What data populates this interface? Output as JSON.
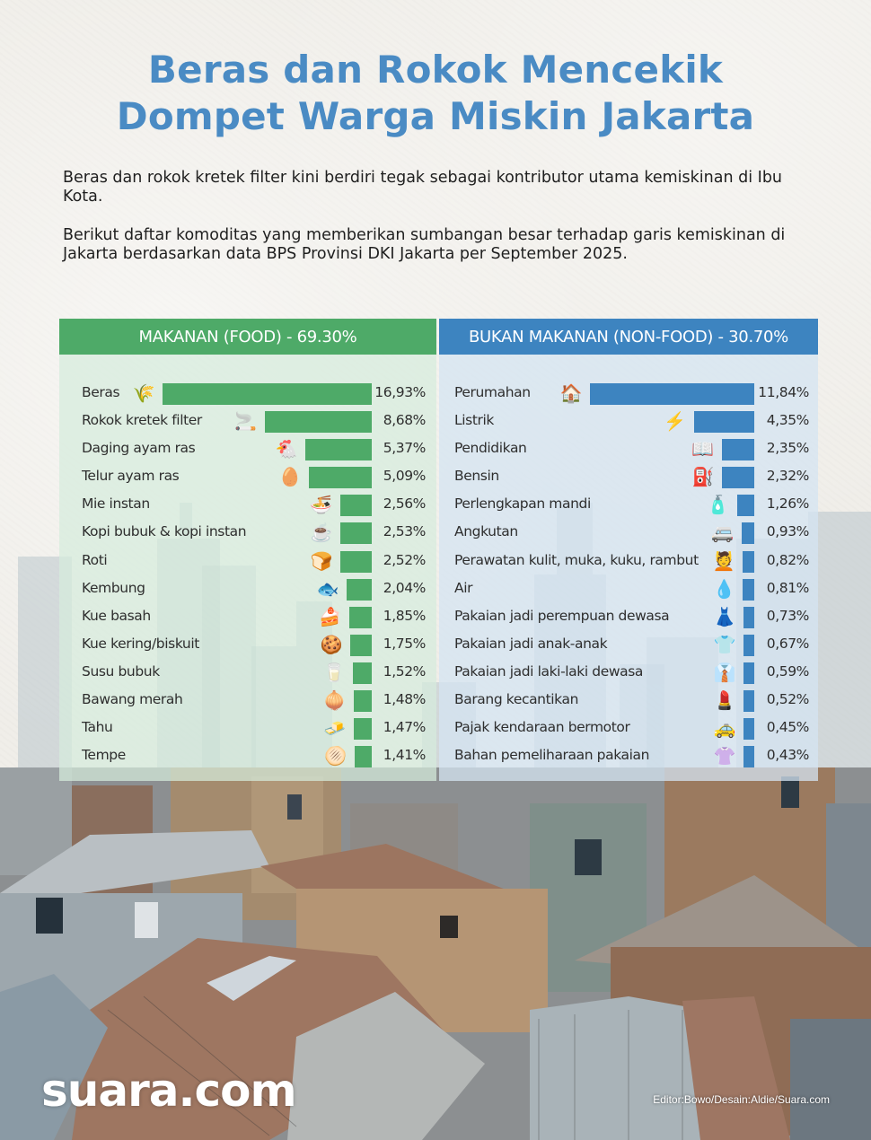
{
  "title": {
    "line1": "Beras dan Rokok Mencekik",
    "line2": "Dompet Warga Miskin Jakarta"
  },
  "intro": {
    "paragraph1": "Beras dan rokok kretek filter kini berdiri tegak sebagai kontributor utama kemiskinan di Ibu Kota.",
    "paragraph2": "Berikut daftar komoditas yang memberikan sumbangan besar terhadap garis kemiskinan di Jakarta berdasarkan data BPS Provinsi DKI Jakarta per September 2025."
  },
  "colors": {
    "title": "#4a8bc4",
    "food_accent": "#4eaa68",
    "nonfood_accent": "#3d84c0"
  },
  "food": {
    "header": "MAKANAN (FOOD) - 69.30%",
    "items": [
      {
        "label": "Beras",
        "value": "16,93%",
        "icon": "rice-sack-icon",
        "glyph": "🌾"
      },
      {
        "label": "Rokok kretek filter",
        "value": "8,68%",
        "icon": "cigarette-icon",
        "glyph": "🚬"
      },
      {
        "label": "Daging ayam ras",
        "value": "5,37%",
        "icon": "chicken-icon",
        "glyph": "🐔"
      },
      {
        "label": "Telur ayam ras",
        "value": "5,09%",
        "icon": "egg-icon",
        "glyph": "🥚"
      },
      {
        "label": "Mie instan",
        "value": "2,56%",
        "icon": "noodle-bowl-icon",
        "glyph": "🍜"
      },
      {
        "label": "Kopi bubuk & kopi instan",
        "value": "2,53%",
        "icon": "coffee-cup-icon",
        "glyph": "☕"
      },
      {
        "label": "Roti",
        "value": "2,52%",
        "icon": "bread-icon",
        "glyph": "🍞"
      },
      {
        "label": "Kembung",
        "value": "2,04%",
        "icon": "fish-icon",
        "glyph": "🐟"
      },
      {
        "label": "Kue basah",
        "value": "1,85%",
        "icon": "cake-icon",
        "glyph": "🍰"
      },
      {
        "label": "Kue kering/biskuit",
        "value": "1,75%",
        "icon": "cookie-icon",
        "glyph": "🍪"
      },
      {
        "label": "Susu bubuk",
        "value": "1,52%",
        "icon": "milk-powder-icon",
        "glyph": "🥛"
      },
      {
        "label": "Bawang merah",
        "value": "1,48%",
        "icon": "shallot-icon",
        "glyph": "🧅"
      },
      {
        "label": "Tahu",
        "value": "1,47%",
        "icon": "tofu-icon",
        "glyph": "🧈"
      },
      {
        "label": "Tempe",
        "value": "1,41%",
        "icon": "tempeh-icon",
        "glyph": "🫓"
      }
    ]
  },
  "nonfood": {
    "header": "BUKAN MAKANAN (NON-FOOD) - 30.70%",
    "items": [
      {
        "label": "Perumahan",
        "value": "11,84%",
        "icon": "house-icon",
        "glyph": "🏠"
      },
      {
        "label": "Listrik",
        "value": "4,35%",
        "icon": "lightning-icon",
        "glyph": "⚡"
      },
      {
        "label": "Pendidikan",
        "value": "2,35%",
        "icon": "book-icon",
        "glyph": "📖"
      },
      {
        "label": "Bensin",
        "value": "2,32%",
        "icon": "fuel-pump-icon",
        "glyph": "⛽"
      },
      {
        "label": "Perlengkapan mandi",
        "value": "1,26%",
        "icon": "toiletries-icon",
        "glyph": "🧴"
      },
      {
        "label": "Angkutan",
        "value": "0,93%",
        "icon": "bus-icon",
        "glyph": "🚐"
      },
      {
        "label": "Perawatan kulit, muka, kuku, rambut",
        "value": "0,82%",
        "icon": "beauty-care-icon",
        "glyph": "💆"
      },
      {
        "label": "Air",
        "value": "0,81%",
        "icon": "water-drop-icon",
        "glyph": "💧"
      },
      {
        "label": "Pakaian jadi perempuan dewasa",
        "value": "0,73%",
        "icon": "dress-icon",
        "glyph": "👗"
      },
      {
        "label": "Pakaian jadi anak-anak",
        "value": "0,67%",
        "icon": "kids-clothes-icon",
        "glyph": "👕"
      },
      {
        "label": "Pakaian jadi laki-laki dewasa",
        "value": "0,59%",
        "icon": "shirt-icon",
        "glyph": "👔"
      },
      {
        "label": "Barang kecantikan",
        "value": "0,52%",
        "icon": "lipstick-icon",
        "glyph": "💄"
      },
      {
        "label": "Pajak kendaraan bermotor",
        "value": "0,45%",
        "icon": "taxi-tax-icon",
        "glyph": "🚕"
      },
      {
        "label": "Bahan pemeliharaan pakaian",
        "value": "0,43%",
        "icon": "laundry-shirt-icon",
        "glyph": "👚"
      }
    ]
  },
  "footer": {
    "brand": "suara.com",
    "credit": "Editor:Bowo/Desain:Aldie/Suara.com"
  },
  "chart_data": [
    {
      "type": "bar",
      "orientation": "horizontal",
      "title": "MAKANAN (FOOD) - 69.30%",
      "xlabel": "",
      "ylabel": "",
      "unit": "%",
      "categories": [
        "Beras",
        "Rokok kretek filter",
        "Daging ayam ras",
        "Telur ayam ras",
        "Mie instan",
        "Kopi bubuk & kopi instan",
        "Roti",
        "Kembung",
        "Kue basah",
        "Kue kering/biskuit",
        "Susu bubuk",
        "Bawang merah",
        "Tahu",
        "Tempe"
      ],
      "values": [
        16.93,
        8.68,
        5.37,
        5.09,
        2.56,
        2.53,
        2.52,
        2.04,
        1.85,
        1.75,
        1.52,
        1.48,
        1.47,
        1.41
      ],
      "color": "#4eaa68",
      "grid": false,
      "legend": "none"
    },
    {
      "type": "bar",
      "orientation": "horizontal",
      "title": "BUKAN MAKANAN (NON-FOOD) - 30.70%",
      "xlabel": "",
      "ylabel": "",
      "unit": "%",
      "categories": [
        "Perumahan",
        "Listrik",
        "Pendidikan",
        "Bensin",
        "Perlengkapan mandi",
        "Angkutan",
        "Perawatan kulit, muka, kuku, rambut",
        "Air",
        "Pakaian jadi perempuan dewasa",
        "Pakaian jadi anak-anak",
        "Pakaian jadi laki-laki dewasa",
        "Barang kecantikan",
        "Pajak kendaraan bermotor",
        "Bahan pemeliharaan pakaian"
      ],
      "values": [
        11.84,
        4.35,
        2.35,
        2.32,
        1.26,
        0.93,
        0.82,
        0.81,
        0.73,
        0.67,
        0.59,
        0.52,
        0.45,
        0.43
      ],
      "color": "#3d84c0",
      "grid": false,
      "legend": "none"
    }
  ]
}
